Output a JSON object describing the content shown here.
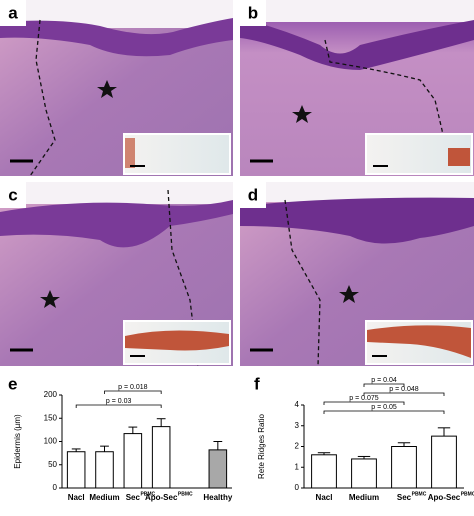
{
  "panels": [
    {
      "label": "a"
    },
    {
      "label": "b"
    },
    {
      "label": "c"
    },
    {
      "label": "d"
    }
  ],
  "chart_data": [
    {
      "type": "bar",
      "panel_label": "e",
      "y_label": "Epidermis (µm)",
      "categories": [
        "Nacl",
        "Medium",
        "Sec",
        "Apo-Sec",
        null,
        "Healthy"
      ],
      "superscripts": [
        null,
        null,
        "PBMC",
        "PBMC",
        null,
        null
      ],
      "values": [
        78,
        78,
        117,
        132,
        null,
        82
      ],
      "errors": [
        6,
        12,
        14,
        17,
        null,
        18
      ],
      "colors": [
        "#ffffff",
        "#ffffff",
        "#ffffff",
        "#ffffff",
        null,
        "#a8a8a8"
      ],
      "ylim": [
        0,
        200
      ],
      "yticks": [
        0,
        50,
        100,
        150,
        200
      ],
      "brackets": [
        {
          "from": 0,
          "to": 3,
          "label": "p = 0.03"
        },
        {
          "from": 1,
          "to": 3,
          "label": "p = 0.018"
        }
      ]
    },
    {
      "type": "bar",
      "panel_label": "f",
      "y_label": "Rete Ridges Ratio",
      "categories": [
        "Nacl",
        "Medium",
        "Sec",
        "Apo-Sec"
      ],
      "superscripts": [
        null,
        null,
        "PBMC",
        "PBMC"
      ],
      "values": [
        1.6,
        1.4,
        2.0,
        2.5
      ],
      "errors": [
        0.1,
        0.12,
        0.18,
        0.4
      ],
      "colors": [
        "#ffffff",
        "#ffffff",
        "#ffffff",
        "#ffffff"
      ],
      "ylim": [
        0,
        4
      ],
      "yticks": [
        0,
        1,
        2,
        3,
        4
      ],
      "brackets": [
        {
          "from": 0,
          "to": 3,
          "label": "p = 0.05"
        },
        {
          "from": 1,
          "to": 3,
          "label": "p = 0.048"
        },
        {
          "from": 0,
          "to": 2,
          "label": "p = 0.075"
        },
        {
          "from": 1,
          "to": 2,
          "label": "p = 0.04"
        }
      ]
    }
  ]
}
